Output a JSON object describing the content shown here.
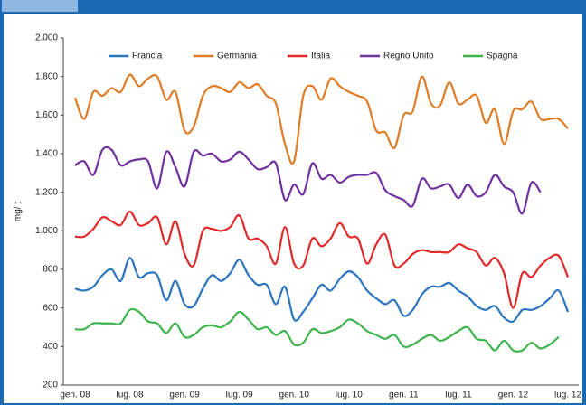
{
  "chart_data": {
    "type": "line",
    "y_label": "mg/ t",
    "legend": "top",
    "grid": false,
    "categories": [
      "gen. 08",
      null,
      null,
      null,
      null,
      null,
      "lug. 08",
      null,
      null,
      null,
      null,
      null,
      "gen. 09",
      null,
      null,
      null,
      null,
      null,
      "lug. 09",
      null,
      null,
      null,
      null,
      null,
      "gen. 10",
      null,
      null,
      null,
      null,
      null,
      "lug. 10",
      null,
      null,
      null,
      null,
      null,
      "gen. 11",
      null,
      null,
      null,
      null,
      null,
      "lug. 11",
      null,
      null,
      null,
      null,
      null,
      "gen. 12",
      null,
      null,
      null,
      null,
      null,
      "lug. 12"
    ],
    "ylim": [
      200,
      2000
    ],
    "yticks": [
      200,
      400,
      600,
      800,
      {
        "value": 1000,
        "label": "1.000"
      },
      {
        "value": 1200,
        "label": "1.200"
      },
      {
        "value": 1400,
        "label": "1.400"
      },
      {
        "value": 1600,
        "label": "1.600"
      },
      {
        "value": 1800,
        "label": "1.800"
      },
      {
        "value": 2000,
        "label": "2.000"
      }
    ],
    "series": [
      {
        "name": "Francia",
        "color": "#2b74c0",
        "values": [
          700,
          690,
          710,
          770,
          800,
          740,
          860,
          760,
          780,
          770,
          640,
          740,
          620,
          610,
          700,
          770,
          740,
          780,
          850,
          770,
          720,
          720,
          620,
          710,
          540,
          580,
          650,
          720,
          690,
          750,
          790,
          760,
          690,
          650,
          620,
          640,
          560,
          590,
          670,
          710,
          710,
          730,
          690,
          660,
          610,
          590,
          610,
          550,
          530,
          590,
          590,
          610,
          650,
          690,
          580
        ]
      },
      {
        "name": "Germania",
        "color": "#e07b26",
        "values": [
          1690,
          1580,
          1720,
          1700,
          1740,
          1720,
          1810,
          1750,
          1790,
          1800,
          1680,
          1720,
          1520,
          1540,
          1700,
          1750,
          1740,
          1720,
          1770,
          1740,
          1760,
          1700,
          1660,
          1450,
          1360,
          1700,
          1750,
          1680,
          1790,
          1750,
          1720,
          1700,
          1670,
          1520,
          1510,
          1430,
          1600,
          1620,
          1800,
          1660,
          1650,
          1770,
          1660,
          1680,
          1700,
          1560,
          1630,
          1450,
          1620,
          1630,
          1670,
          1580,
          1580,
          1580,
          1530
        ]
      },
      {
        "name": "Italia",
        "color": "#e2292a",
        "values": [
          970,
          970,
          1010,
          1070,
          1050,
          1030,
          1100,
          1030,
          1040,
          1070,
          930,
          1050,
          880,
          820,
          1000,
          1010,
          1000,
          1020,
          1080,
          960,
          960,
          920,
          830,
          1020,
          830,
          820,
          960,
          920,
          960,
          1040,
          970,
          960,
          830,
          930,
          980,
          820,
          830,
          880,
          900,
          890,
          890,
          890,
          930,
          910,
          890,
          820,
          860,
          780,
          600,
          780,
          760,
          820,
          860,
          870,
          760
        ]
      },
      {
        "name": "Regno Unito",
        "color": "#7030a0",
        "values": [
          1340,
          1360,
          1290,
          1420,
          1420,
          1340,
          1360,
          1370,
          1360,
          1220,
          1410,
          1330,
          1230,
          1410,
          1390,
          1400,
          1360,
          1370,
          1410,
          1370,
          1320,
          1330,
          1350,
          1160,
          1240,
          1190,
          1350,
          1270,
          1290,
          1250,
          1280,
          1290,
          1290,
          1300,
          1210,
          1180,
          1160,
          1130,
          1270,
          1220,
          1230,
          1240,
          1170,
          1240,
          1180,
          1200,
          1290,
          1230,
          1200,
          1090,
          1250,
          1200,
          null,
          null,
          null
        ]
      },
      {
        "name": "Spagna",
        "color": "#3fb44c",
        "values": [
          490,
          490,
          520,
          520,
          520,
          520,
          590,
          580,
          530,
          520,
          470,
          520,
          450,
          460,
          500,
          510,
          500,
          530,
          580,
          540,
          490,
          500,
          460,
          480,
          410,
          420,
          490,
          470,
          480,
          500,
          540,
          520,
          480,
          460,
          440,
          460,
          400,
          410,
          440,
          460,
          430,
          450,
          480,
          500,
          440,
          430,
          380,
          430,
          380,
          380,
          420,
          390,
          410,
          450,
          null
        ]
      }
    ]
  }
}
